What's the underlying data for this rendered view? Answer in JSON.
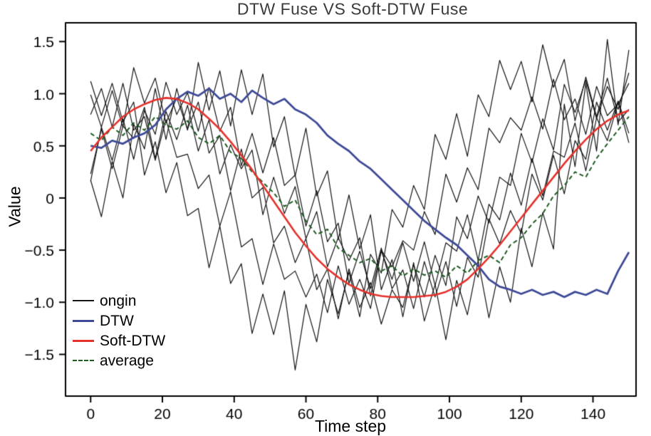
{
  "chart_data": {
    "type": "line",
    "title": "DTW Fuse VS Soft-DTW Fuse",
    "xlabel": "Time step",
    "ylabel": "Value",
    "xlim": [
      -7,
      152
    ],
    "ylim": [
      -1.9,
      1.68
    ],
    "xticks": [
      0,
      20,
      40,
      60,
      80,
      100,
      120,
      140
    ],
    "yticks": [
      -1.5,
      -1.0,
      -0.5,
      0,
      0.5,
      1.0,
      1.5
    ],
    "grid": false,
    "legend_position": "lower-left",
    "x": [
      0,
      3,
      6,
      9,
      12,
      15,
      18,
      21,
      24,
      27,
      30,
      33,
      36,
      39,
      42,
      45,
      48,
      51,
      54,
      57,
      60,
      63,
      66,
      69,
      72,
      75,
      78,
      81,
      84,
      87,
      90,
      93,
      96,
      99,
      102,
      105,
      108,
      111,
      114,
      117,
      120,
      123,
      126,
      129,
      132,
      135,
      138,
      141,
      144,
      147,
      150
    ],
    "series": [
      {
        "name": "ongin",
        "color": "#141414",
        "width": 1.2,
        "dash": [],
        "values": [
          0.99,
          0.68,
          1.03,
          0.68,
          1.25,
          0.91,
          1.15,
          0.72,
          0.96,
          0.66,
          0.92,
          0.43,
          0.6,
          0.07,
          0.47,
          0,
          0.1,
          -0.43,
          -0.27,
          -0.62,
          -0.39,
          -0.88,
          -0.68,
          -1.16,
          -0.68,
          -1.05,
          -0.81,
          -1.21,
          -0.88,
          -1.05,
          -0.64,
          -0.95,
          -0.55,
          -0.84,
          -0.18,
          -0.39,
          0.02,
          -0.24,
          0.2,
          0.12,
          0.62,
          0.34,
          0.76,
          0.46,
          1.09,
          0.82,
          1.13,
          0.76,
          1.07,
          0.85,
          1.2
        ]
      },
      {
        "name": "ongin",
        "color": "#141414",
        "width": 1.2,
        "dash": [],
        "values": [
          0.16,
          0.68,
          0.36,
          0.76,
          0.37,
          0.84,
          0.61,
          1.11,
          0.8,
          1.01,
          0.64,
          1.06,
          0.64,
          0.87,
          0.31,
          0.62,
          0.24,
          0.58,
          0.12,
          0.22,
          -0.27,
          0.07,
          -0.42,
          -0.24,
          -0.82,
          -0.51,
          -0.87,
          -0.48,
          -0.87,
          -0.69,
          -1.06,
          -0.61,
          -0.95,
          -0.61,
          -1.04,
          -0.57,
          -0.76,
          -0.2,
          -0.44,
          -0.12,
          -0.34,
          0.23,
          -0.02,
          0.41,
          0.04,
          0.55,
          0.37,
          0.92,
          0.65,
          0.93,
          0.62
        ]
      },
      {
        "name": "ongin",
        "color": "#141414",
        "width": 1.2,
        "dash": [],
        "values": [
          1.12,
          0.79,
          1.1,
          0.73,
          0.92,
          0.22,
          0.54,
          0.05,
          0.34,
          -0.17,
          -0.1,
          -0.67,
          -0.27,
          -0.82,
          -0.63,
          -1.3,
          -0.92,
          -1.31,
          -0.89,
          -1.65,
          -1.02,
          -1.38,
          -0.78,
          -1.11,
          -0.71,
          -1.14,
          -0.54,
          -0.72,
          -0.11,
          -0.28,
          0.12,
          -0.11,
          0.61,
          0.37,
          0.81,
          0.4,
          0.99,
          0.78,
          1.32,
          1.04,
          1.31,
          0.92,
          1.47,
          1.06,
          1.33,
          0.74,
          1.16,
          0.78,
          1.15,
          0.73,
          0.85
        ]
      },
      {
        "name": "ongin",
        "color": "#141414",
        "width": 1.2,
        "dash": [],
        "values": [
          0.23,
          0.66,
          0.28,
          0.69,
          0.57,
          0.87,
          0.38,
          0.83,
          0.56,
          0.89,
          0.45,
          0.75,
          0.23,
          0.51,
          0.28,
          0.46,
          -0.16,
          0.2,
          -0.15,
          0.11,
          -0.39,
          -0.13,
          -0.66,
          -0.38,
          -0.6,
          -0.38,
          -0.94,
          -0.51,
          -0.78,
          -0.43,
          -0.8,
          -0.42,
          -0.84,
          -0.43,
          -0.51,
          -0.16,
          -0.6,
          -0.06,
          -0.21,
          0.24,
          -0.07,
          0.38,
          0.02,
          0.45,
          0.39,
          0.72,
          0.26,
          0.77,
          0.55,
          0.92,
          0.53
        ]
      },
      {
        "name": "ongin",
        "color": "#141414",
        "width": 1.2,
        "dash": [],
        "values": [
          0.17,
          -0.18,
          0.35,
          0,
          0.71,
          0.47,
          1.05,
          0.56,
          1.05,
          0.65,
          1.3,
          0.84,
          1.22,
          0.69,
          1.23,
          0.8,
          1.19,
          0.49,
          0.78,
          0.21,
          0.67,
          0.02,
          0.26,
          -0.4,
          0.03,
          -0.49,
          -0.16,
          -0.88,
          -0.59,
          -1.14,
          -0.62,
          -1.18,
          -0.83,
          -1.36,
          -0.79,
          -1.12,
          -0.6,
          -1.15,
          -0.66,
          -1.0,
          -0.29,
          -0.66,
          -0.14,
          -0.49,
          0.9,
          0.3,
          1.1,
          0.45,
          1.52,
          0.7,
          1.42
        ]
      },
      {
        "name": "ongin",
        "color": "#141414",
        "width": 1.2,
        "dash": [],
        "values": [
          0.8,
          1.05,
          0.68,
          1.1,
          0.65,
          0.78,
          0.36,
          0.75,
          0.39,
          0.42,
          0.09,
          0.22,
          -0.27,
          0.06,
          -0.47,
          -0.39,
          -0.83,
          -0.44,
          -0.78,
          -0.7,
          -0.95,
          -0.73,
          -1.1,
          -0.65,
          -1.02,
          -0.78,
          -1.06,
          -0.5,
          -0.66,
          -0.41,
          -0.5,
          -0.13,
          -0.35,
          0.23,
          -0.04,
          0.29,
          0.08,
          0.67,
          0.53,
          0.77,
          0.65,
          0.97,
          0.66,
          1.14,
          0.75,
          0.95,
          0.61,
          1.07,
          0.79,
          0.9,
          1.1
        ]
      },
      {
        "name": "average",
        "color": "#1c5c20",
        "width": 2,
        "dash": [
          6,
          4
        ],
        "values": [
          0.62,
          0.55,
          0.68,
          0.6,
          0.72,
          0.65,
          0.78,
          0.7,
          0.66,
          0.74,
          0.58,
          0.52,
          0.6,
          0.44,
          0.38,
          0.25,
          0.15,
          0.05,
          -0.08,
          -0.02,
          -0.22,
          -0.35,
          -0.3,
          -0.48,
          -0.55,
          -0.62,
          -0.58,
          -0.7,
          -0.65,
          -0.75,
          -0.68,
          -0.74,
          -0.7,
          -0.76,
          -0.65,
          -0.72,
          -0.6,
          -0.55,
          -0.62,
          -0.45,
          -0.38,
          -0.25,
          -0.15,
          0.02,
          0.12,
          0.25,
          0.2,
          0.38,
          0.52,
          0.65,
          0.78
        ]
      },
      {
        "name": "DTW",
        "color": "#3e4a97",
        "width": 2.8,
        "dash": [],
        "values": [
          0.5,
          0.48,
          0.55,
          0.52,
          0.58,
          0.62,
          0.7,
          0.85,
          0.95,
          1.02,
          0.98,
          1.05,
          0.95,
          1.0,
          0.92,
          1.03,
          0.96,
          0.9,
          0.95,
          0.85,
          0.8,
          0.72,
          0.6,
          0.52,
          0.45,
          0.35,
          0.28,
          0.18,
          0.08,
          -0.02,
          -0.12,
          -0.22,
          -0.3,
          -0.38,
          -0.45,
          -0.55,
          -0.65,
          -0.78,
          -0.85,
          -0.88,
          -0.92,
          -0.88,
          -0.93,
          -0.9,
          -0.95,
          -0.9,
          -0.93,
          -0.88,
          -0.92,
          -0.7,
          -0.52
        ]
      },
      {
        "name": "Soft-DTW",
        "color": "#e5312b",
        "width": 2.6,
        "dash": [],
        "values": [
          0.45,
          0.58,
          0.68,
          0.78,
          0.85,
          0.9,
          0.94,
          0.96,
          0.95,
          0.91,
          0.85,
          0.76,
          0.66,
          0.54,
          0.41,
          0.27,
          0.12,
          -0.03,
          -0.18,
          -0.33,
          -0.46,
          -0.58,
          -0.68,
          -0.76,
          -0.83,
          -0.88,
          -0.92,
          -0.94,
          -0.95,
          -0.95,
          -0.95,
          -0.94,
          -0.93,
          -0.9,
          -0.85,
          -0.78,
          -0.68,
          -0.57,
          -0.45,
          -0.32,
          -0.19,
          -0.06,
          0.07,
          0.2,
          0.33,
          0.45,
          0.56,
          0.66,
          0.74,
          0.8,
          0.84
        ]
      }
    ],
    "legend": [
      {
        "label": "ongin",
        "color": "#141414",
        "width": 2,
        "dash": false
      },
      {
        "label": "DTW",
        "color": "#3e4a97",
        "width": 3,
        "dash": false
      },
      {
        "label": "Soft-DTW",
        "color": "#e5312b",
        "width": 3,
        "dash": false
      },
      {
        "label": "average",
        "color": "#1c5c20",
        "width": 2,
        "dash": true
      }
    ]
  }
}
